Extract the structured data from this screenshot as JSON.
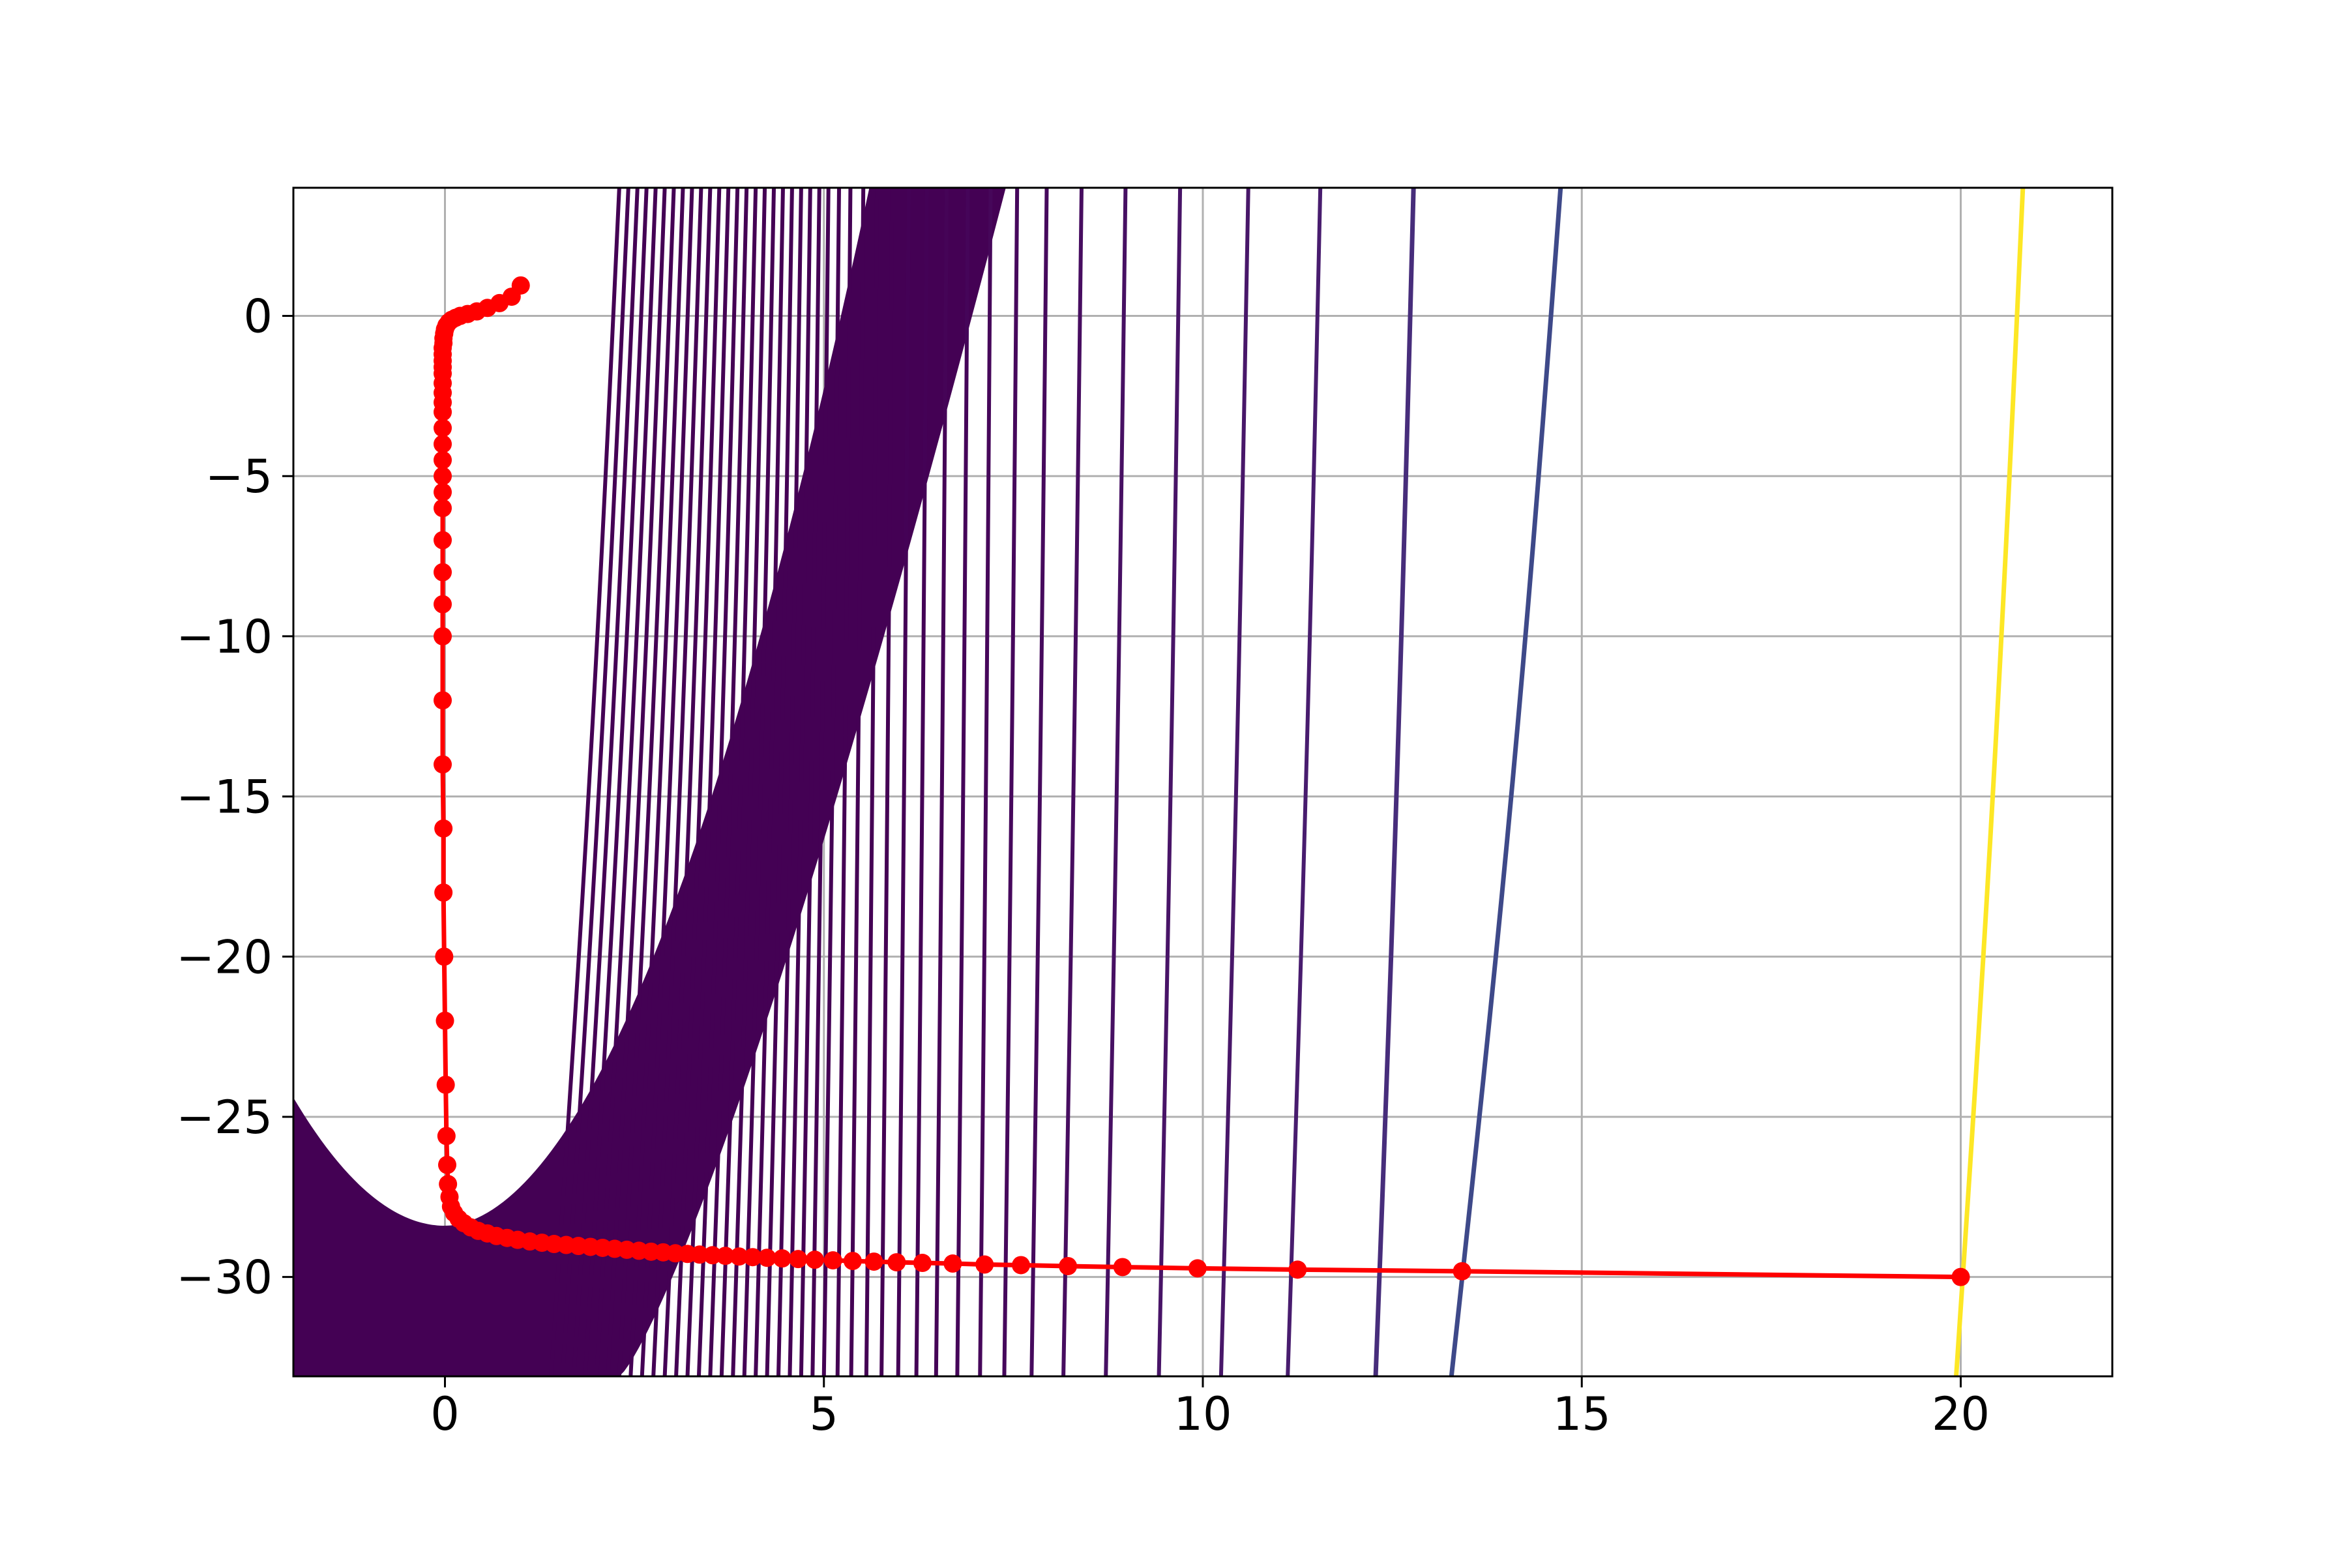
{
  "chart_data": {
    "type": "line",
    "title": "",
    "xlabel": "",
    "ylabel": "",
    "xlim": [
      -2,
      22
    ],
    "ylim": [
      -33.1,
      4.0
    ],
    "grid": true,
    "x_ticks": [
      {
        "value": 0,
        "label": "0"
      },
      {
        "value": 5,
        "label": "5"
      },
      {
        "value": 10,
        "label": "10"
      },
      {
        "value": 15,
        "label": "15"
      },
      {
        "value": 20,
        "label": "20"
      }
    ],
    "y_ticks": [
      {
        "value": 0,
        "label": "0"
      },
      {
        "value": -5,
        "label": "−5"
      },
      {
        "value": -10,
        "label": "−10"
      },
      {
        "value": -15,
        "label": "−15"
      },
      {
        "value": -20,
        "label": "−20"
      },
      {
        "value": -25,
        "label": "−25"
      },
      {
        "value": -30,
        "label": "−30"
      }
    ],
    "contours": {
      "function": "10*(y - x^2 + 2x + 28.4) + 10*x^2",
      "colormap": "viridis",
      "filled_region_color": "#440154",
      "lines": [
        {
          "x_at_top": 2.3,
          "x_at_bottom": 1.4,
          "color": "#440154"
        },
        {
          "x_at_top": 2.42,
          "x_at_bottom": 1.55,
          "color": "#440154"
        },
        {
          "x_at_top": 2.54,
          "x_at_bottom": 1.7,
          "color": "#440154"
        },
        {
          "x_at_top": 2.66,
          "x_at_bottom": 1.85,
          "color": "#440154"
        },
        {
          "x_at_top": 2.78,
          "x_at_bottom": 2.0,
          "color": "#440154"
        },
        {
          "x_at_top": 2.9,
          "x_at_bottom": 2.15,
          "color": "#440154"
        },
        {
          "x_at_top": 3.02,
          "x_at_bottom": 2.3,
          "color": "#440154"
        },
        {
          "x_at_top": 3.14,
          "x_at_bottom": 2.45,
          "color": "#440154"
        },
        {
          "x_at_top": 3.26,
          "x_at_bottom": 2.6,
          "color": "#440154"
        },
        {
          "x_at_top": 3.38,
          "x_at_bottom": 2.75,
          "color": "#440154"
        },
        {
          "x_at_top": 3.5,
          "x_at_bottom": 2.9,
          "color": "#440154"
        },
        {
          "x_at_top": 3.62,
          "x_at_bottom": 3.05,
          "color": "#440154"
        },
        {
          "x_at_top": 3.74,
          "x_at_bottom": 3.2,
          "color": "#440154"
        },
        {
          "x_at_top": 3.86,
          "x_at_bottom": 3.35,
          "color": "#440154"
        },
        {
          "x_at_top": 3.98,
          "x_at_bottom": 3.5,
          "color": "#440154"
        },
        {
          "x_at_top": 4.1,
          "x_at_bottom": 3.65,
          "color": "#440154"
        },
        {
          "x_at_top": 4.22,
          "x_at_bottom": 3.8,
          "color": "#440154"
        },
        {
          "x_at_top": 4.34,
          "x_at_bottom": 3.95,
          "color": "#440154"
        },
        {
          "x_at_top": 4.46,
          "x_at_bottom": 4.1,
          "color": "#440154"
        },
        {
          "x_at_top": 4.58,
          "x_at_bottom": 4.25,
          "color": "#440154"
        },
        {
          "x_at_top": 4.7,
          "x_at_bottom": 4.4,
          "color": "#440154"
        },
        {
          "x_at_top": 4.82,
          "x_at_bottom": 4.55,
          "color": "#440154"
        },
        {
          "x_at_top": 4.94,
          "x_at_bottom": 4.7,
          "color": "#440154"
        },
        {
          "x_at_top": 5.06,
          "x_at_bottom": 4.85,
          "color": "#440154"
        },
        {
          "x_at_top": 5.2,
          "x_at_bottom": 5.0,
          "color": "#440154"
        },
        {
          "x_at_top": 5.35,
          "x_at_bottom": 5.18,
          "color": "#440154"
        },
        {
          "x_at_top": 5.52,
          "x_at_bottom": 5.36,
          "color": "#440154"
        },
        {
          "x_at_top": 5.7,
          "x_at_bottom": 5.56,
          "color": "#440154"
        },
        {
          "x_at_top": 5.9,
          "x_at_bottom": 5.76,
          "color": "#440154"
        },
        {
          "x_at_top": 6.12,
          "x_at_bottom": 5.98,
          "color": "#440256"
        },
        {
          "x_at_top": 6.36,
          "x_at_bottom": 6.22,
          "color": "#440256"
        },
        {
          "x_at_top": 6.62,
          "x_at_bottom": 6.48,
          "color": "#450457"
        },
        {
          "x_at_top": 6.9,
          "x_at_bottom": 6.76,
          "color": "#450559"
        },
        {
          "x_at_top": 7.2,
          "x_at_bottom": 7.06,
          "color": "#46075a"
        },
        {
          "x_at_top": 7.55,
          "x_at_bottom": 7.38,
          "color": "#46085c"
        },
        {
          "x_at_top": 7.94,
          "x_at_bottom": 7.74,
          "color": "#460a5d"
        },
        {
          "x_at_top": 8.4,
          "x_at_bottom": 8.16,
          "color": "#470d60"
        },
        {
          "x_at_top": 8.98,
          "x_at_bottom": 8.72,
          "color": "#471063"
        },
        {
          "x_at_top": 9.7,
          "x_at_bottom": 9.42,
          "color": "#481467"
        },
        {
          "x_at_top": 10.6,
          "x_at_bottom": 10.24,
          "color": "#481769"
        },
        {
          "x_at_top": 11.55,
          "x_at_bottom": 11.12,
          "color": "#481c6e"
        },
        {
          "x_at_top": 12.78,
          "x_at_bottom": 12.28,
          "color": "#472d7b"
        },
        {
          "x_at_top": 14.72,
          "x_at_bottom": 13.28,
          "color": "#3e4989"
        },
        {
          "x_at_top": 20.82,
          "x_at_bottom": 19.94,
          "color": "#fde725"
        }
      ]
    },
    "series": [
      {
        "color": "#ff0000",
        "marker": "circle",
        "x": [
          20.0,
          13.42,
          11.25,
          9.93,
          8.94,
          8.22,
          7.6,
          7.12,
          6.7,
          6.3,
          5.96,
          5.66,
          5.38,
          5.12,
          4.88,
          4.66,
          4.45,
          4.25,
          4.06,
          3.88,
          3.7,
          3.53,
          3.36,
          3.2,
          3.04,
          2.88,
          2.72,
          2.56,
          2.4,
          2.24,
          2.08,
          1.92,
          1.76,
          1.6,
          1.44,
          1.28,
          1.12,
          0.96,
          0.82,
          0.68,
          0.56,
          0.44,
          0.34,
          0.25,
          0.18,
          0.12,
          0.08,
          0.06,
          0.04,
          0.03,
          0.02,
          0.01,
          0.0,
          -0.01,
          -0.02,
          -0.02,
          -0.03,
          -0.03,
          -0.03,
          -0.03,
          -0.03,
          -0.03,
          -0.03,
          -0.03,
          -0.03,
          -0.03,
          -0.03,
          -0.03,
          -0.03,
          -0.03,
          -0.03,
          -0.03,
          -0.03,
          -0.03,
          -0.03,
          -0.03,
          -0.03,
          -0.02,
          -0.02,
          -0.01,
          0.0,
          0.02,
          0.05,
          0.09,
          0.14,
          0.2,
          0.3,
          0.42,
          0.56,
          0.72,
          0.88,
          1.0
        ],
        "y": [
          -30.0,
          -29.82,
          -29.77,
          -29.73,
          -29.69,
          -29.66,
          -29.63,
          -29.61,
          -29.58,
          -29.56,
          -29.54,
          -29.52,
          -29.5,
          -29.48,
          -29.46,
          -29.44,
          -29.42,
          -29.4,
          -29.38,
          -29.36,
          -29.34,
          -29.32,
          -29.3,
          -29.28,
          -29.26,
          -29.23,
          -29.21,
          -29.18,
          -29.15,
          -29.12,
          -29.09,
          -29.06,
          -29.03,
          -29.0,
          -28.97,
          -28.93,
          -28.89,
          -28.84,
          -28.78,
          -28.72,
          -28.64,
          -28.56,
          -28.45,
          -28.32,
          -28.18,
          -28.0,
          -27.8,
          -27.5,
          -27.1,
          -26.5,
          -25.6,
          -24.0,
          -22.0,
          -20.0,
          -18.0,
          -16.0,
          -14.0,
          -12.0,
          -10.0,
          -9.0,
          -8.0,
          -7.0,
          -6.0,
          -5.5,
          -5.0,
          -4.5,
          -4.0,
          -3.5,
          -3.0,
          -2.7,
          -2.4,
          -2.1,
          -1.8,
          -1.6,
          -1.4,
          -1.2,
          -1.0,
          -0.85,
          -0.7,
          -0.55,
          -0.42,
          -0.3,
          -0.2,
          -0.12,
          -0.06,
          0.0,
          0.06,
          0.14,
          0.25,
          0.4,
          0.6,
          0.95
        ]
      }
    ]
  }
}
